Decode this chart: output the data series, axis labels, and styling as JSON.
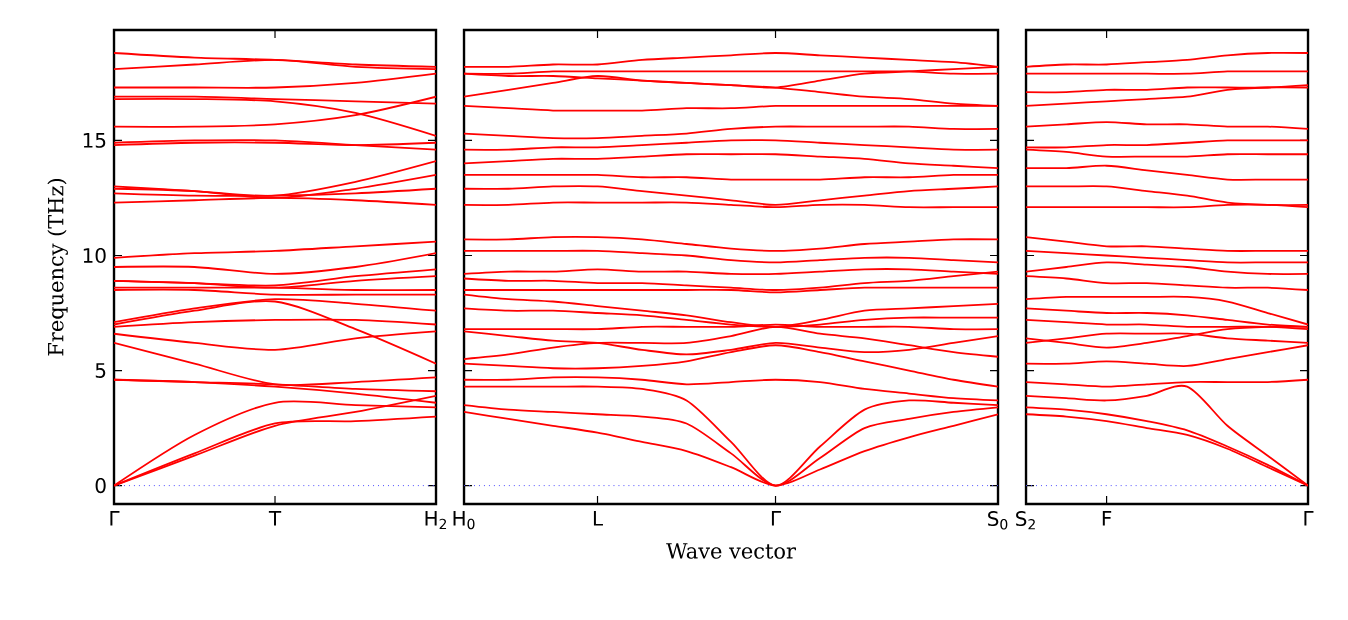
{
  "chart_data": [
    {
      "type": "line",
      "ylabel": "Frequency (THz)",
      "categories": [
        "Γ",
        null,
        "T",
        null,
        "H$_{2}$"
      ],
      "ylim": [
        -0.8,
        19.8
      ],
      "yticks": [
        0,
        5,
        10,
        15
      ],
      "ref_lines": [
        {
          "axis": "y",
          "value": 0,
          "color": "#4d4dff",
          "line_style": "dotted"
        }
      ],
      "series": [
        {
          "color": "#ff0000",
          "values": [
            18.8,
            18.6,
            18.5,
            18.3,
            18.2
          ]
        },
        {
          "color": "#ff0000",
          "values": [
            18.1,
            18.3,
            18.5,
            18.2,
            18.1
          ]
        },
        {
          "color": "#ff0000",
          "values": [
            17.3,
            17.3,
            17.3,
            17.5,
            17.9
          ]
        },
        {
          "color": "#ff0000",
          "values": [
            16.9,
            16.9,
            16.8,
            16.7,
            16.6
          ]
        },
        {
          "color": "#ff0000",
          "values": [
            16.8,
            16.8,
            16.7,
            16.2,
            15.2
          ]
        },
        {
          "color": "#ff0000",
          "values": [
            15.6,
            15.6,
            15.7,
            16.1,
            16.9
          ]
        },
        {
          "color": "#ff0000",
          "values": [
            14.9,
            15.0,
            15.0,
            14.8,
            14.6
          ]
        },
        {
          "color": "#ff0000",
          "values": [
            14.8,
            14.9,
            14.9,
            14.8,
            14.9
          ]
        },
        {
          "color": "#ff0000",
          "values": [
            13.0,
            12.8,
            12.6,
            13.2,
            14.1
          ]
        },
        {
          "color": "#ff0000",
          "values": [
            12.9,
            12.8,
            12.5,
            12.9,
            13.5
          ]
        },
        {
          "color": "#ff0000",
          "values": [
            12.7,
            12.6,
            12.6,
            12.7,
            12.9
          ]
        },
        {
          "color": "#ff0000",
          "values": [
            12.3,
            12.4,
            12.5,
            12.4,
            12.2
          ]
        },
        {
          "color": "#ff0000",
          "values": [
            9.9,
            10.1,
            10.2,
            10.4,
            10.6
          ]
        },
        {
          "color": "#ff0000",
          "values": [
            9.5,
            9.5,
            9.2,
            9.5,
            10.1
          ]
        },
        {
          "color": "#ff0000",
          "values": [
            8.9,
            8.8,
            8.7,
            9.1,
            9.4
          ]
        },
        {
          "color": "#ff0000",
          "values": [
            8.9,
            8.8,
            8.6,
            8.9,
            9.1
          ]
        },
        {
          "color": "#ff0000",
          "values": [
            8.6,
            8.6,
            8.6,
            8.5,
            8.5
          ]
        },
        {
          "color": "#ff0000",
          "values": [
            8.5,
            8.5,
            8.3,
            8.3,
            8.3
          ]
        },
        {
          "color": "#ff0000",
          "values": [
            7.1,
            7.7,
            8.1,
            7.9,
            7.6
          ]
        },
        {
          "color": "#ff0000",
          "values": [
            6.9,
            7.1,
            7.2,
            7.2,
            7.0
          ]
        },
        {
          "color": "#ff0000",
          "values": [
            7.0,
            7.6,
            8.0,
            6.8,
            5.3
          ]
        },
        {
          "color": "#ff0000",
          "values": [
            6.6,
            6.2,
            5.9,
            6.4,
            6.7
          ]
        },
        {
          "color": "#ff0000",
          "values": [
            6.2,
            5.3,
            4.4,
            4.5,
            4.7
          ]
        },
        {
          "color": "#ff0000",
          "values": [
            4.6,
            4.5,
            4.4,
            4.2,
            4.1
          ]
        },
        {
          "color": "#ff0000",
          "values": [
            4.6,
            4.5,
            4.3,
            4.0,
            3.6
          ]
        },
        {
          "color": "#ff0000",
          "values": [
            0,
            2.2,
            3.6,
            3.5,
            3.4
          ]
        },
        {
          "color": "#ff0000",
          "values": [
            0,
            1.3,
            2.6,
            3.2,
            3.9
          ]
        },
        {
          "color": "#ff0000",
          "values": [
            0,
            1.4,
            2.7,
            2.8,
            3.0
          ]
        }
      ]
    },
    {
      "type": "line",
      "xlabel": "Wave vector",
      "tick_labels": "x",
      "categories": [
        "H$_{0}$",
        null,
        null,
        "L",
        null,
        null,
        null,
        "Γ",
        null,
        null,
        null,
        null,
        "S$_{0}$"
      ],
      "ylim": [
        -0.8,
        19.8
      ],
      "yticks": [
        0,
        5,
        10,
        15
      ],
      "ref_lines": [
        {
          "axis": "y",
          "value": 0,
          "color": "#4d4dff",
          "line_style": "dotted"
        }
      ],
      "series": [
        {
          "color": "#ff0000",
          "values": [
            18.2,
            18.2,
            18.3,
            18.3,
            18.5,
            18.6,
            18.7,
            18.8,
            18.7,
            18.6,
            18.5,
            18.4,
            18.2
          ]
        },
        {
          "color": "#ff0000",
          "values": [
            17.9,
            17.9,
            18.0,
            18.0,
            18.0,
            18.0,
            18.0,
            18.0,
            18.0,
            18.0,
            18.0,
            17.9,
            17.9
          ]
        },
        {
          "color": "#ff0000",
          "values": [
            16.9,
            17.2,
            17.5,
            17.8,
            17.6,
            17.5,
            17.4,
            17.3,
            17.1,
            16.9,
            16.8,
            16.6,
            16.5
          ]
        },
        {
          "color": "#ff0000",
          "values": [
            17.9,
            17.8,
            17.8,
            17.7,
            17.6,
            17.5,
            17.4,
            17.3,
            17.6,
            17.9,
            18.0,
            18.1,
            18.2
          ]
        },
        {
          "color": "#ff0000",
          "values": [
            16.5,
            16.4,
            16.3,
            16.3,
            16.3,
            16.4,
            16.4,
            16.5,
            16.5,
            16.5,
            16.5,
            16.5,
            16.5
          ]
        },
        {
          "color": "#ff0000",
          "values": [
            15.3,
            15.2,
            15.1,
            15.1,
            15.2,
            15.3,
            15.5,
            15.6,
            15.6,
            15.6,
            15.6,
            15.5,
            15.5
          ]
        },
        {
          "color": "#ff0000",
          "values": [
            14.6,
            14.6,
            14.7,
            14.7,
            14.8,
            14.9,
            15.0,
            15.0,
            14.9,
            14.8,
            14.7,
            14.6,
            14.6
          ]
        },
        {
          "color": "#ff0000",
          "values": [
            14.0,
            14.1,
            14.2,
            14.2,
            14.3,
            14.4,
            14.4,
            14.4,
            14.3,
            14.2,
            14.0,
            13.9,
            13.8
          ]
        },
        {
          "color": "#ff0000",
          "values": [
            13.5,
            13.5,
            13.5,
            13.5,
            13.4,
            13.4,
            13.3,
            13.3,
            13.3,
            13.4,
            13.4,
            13.5,
            13.5
          ]
        },
        {
          "color": "#ff0000",
          "values": [
            12.9,
            12.9,
            13.0,
            13.0,
            12.8,
            12.6,
            12.4,
            12.2,
            12.4,
            12.6,
            12.8,
            12.9,
            13.0
          ]
        },
        {
          "color": "#ff0000",
          "values": [
            12.2,
            12.2,
            12.3,
            12.3,
            12.3,
            12.3,
            12.2,
            12.1,
            12.2,
            12.2,
            12.1,
            12.1,
            12.1
          ]
        },
        {
          "color": "#ff0000",
          "values": [
            10.7,
            10.7,
            10.8,
            10.8,
            10.7,
            10.5,
            10.3,
            10.2,
            10.3,
            10.5,
            10.6,
            10.7,
            10.7
          ]
        },
        {
          "color": "#ff0000",
          "values": [
            10.2,
            10.2,
            10.2,
            10.2,
            10.1,
            10.0,
            9.8,
            9.7,
            9.8,
            9.9,
            9.9,
            9.8,
            9.7
          ]
        },
        {
          "color": "#ff0000",
          "values": [
            9.2,
            9.3,
            9.3,
            9.4,
            9.3,
            9.3,
            9.2,
            9.2,
            9.3,
            9.4,
            9.4,
            9.3,
            9.2
          ]
        },
        {
          "color": "#ff0000",
          "values": [
            9.0,
            8.9,
            8.9,
            8.8,
            8.8,
            8.7,
            8.6,
            8.5,
            8.6,
            8.8,
            8.9,
            9.1,
            9.3
          ]
        },
        {
          "color": "#ff0000",
          "values": [
            8.5,
            8.5,
            8.5,
            8.5,
            8.5,
            8.5,
            8.5,
            8.4,
            8.5,
            8.6,
            8.6,
            8.6,
            8.6
          ]
        },
        {
          "color": "#ff0000",
          "values": [
            8.3,
            8.1,
            8.0,
            7.8,
            7.6,
            7.4,
            7.1,
            6.9,
            7.2,
            7.6,
            7.7,
            7.8,
            7.9
          ]
        },
        {
          "color": "#ff0000",
          "values": [
            7.7,
            7.6,
            7.6,
            7.5,
            7.4,
            7.2,
            7.0,
            6.9,
            7.0,
            7.2,
            7.3,
            7.3,
            7.3
          ]
        },
        {
          "color": "#ff0000",
          "values": [
            6.8,
            6.8,
            6.8,
            6.8,
            6.9,
            6.9,
            6.9,
            7.0,
            6.9,
            6.9,
            6.9,
            6.8,
            6.8
          ]
        },
        {
          "color": "#ff0000",
          "values": [
            6.7,
            6.5,
            6.3,
            6.2,
            5.9,
            5.7,
            5.9,
            6.2,
            6.0,
            5.8,
            5.9,
            6.2,
            6.5
          ]
        },
        {
          "color": "#ff0000",
          "values": [
            5.5,
            5.7,
            6.0,
            6.2,
            6.2,
            6.2,
            6.5,
            6.9,
            6.6,
            6.4,
            6.1,
            5.8,
            5.6
          ]
        },
        {
          "color": "#ff0000",
          "values": [
            5.3,
            5.2,
            5.1,
            5.1,
            5.2,
            5.4,
            5.8,
            6.1,
            5.8,
            5.4,
            5.0,
            4.6,
            4.3
          ]
        },
        {
          "color": "#ff0000",
          "values": [
            4.6,
            4.6,
            4.7,
            4.7,
            4.6,
            4.4,
            4.5,
            4.6,
            4.5,
            4.2,
            4.0,
            3.8,
            3.7
          ]
        },
        {
          "color": "#ff0000",
          "values": [
            4.3,
            4.3,
            4.3,
            4.3,
            4.2,
            3.7,
            1.9,
            0,
            1.7,
            3.3,
            3.7,
            3.6,
            3.5
          ]
        },
        {
          "color": "#ff0000",
          "values": [
            3.5,
            3.3,
            3.2,
            3.1,
            3.0,
            2.7,
            1.4,
            0,
            1.2,
            2.5,
            2.9,
            3.2,
            3.4
          ]
        },
        {
          "color": "#ff0000",
          "values": [
            3.2,
            2.9,
            2.6,
            2.3,
            1.9,
            1.5,
            0.8,
            0,
            0.7,
            1.5,
            2.1,
            2.6,
            3.1
          ]
        }
      ]
    },
    {
      "type": "line",
      "tick_labels": "x",
      "categories": [
        "S$_{2}$",
        null,
        "F",
        null,
        null,
        null,
        null,
        "Γ"
      ],
      "ylim": [
        -0.8,
        19.8
      ],
      "yticks": [
        0,
        5,
        10,
        15
      ],
      "ref_lines": [
        {
          "axis": "y",
          "value": 0,
          "color": "#4d4dff",
          "line_style": "dotted"
        }
      ],
      "series": [
        {
          "color": "#ff0000",
          "values": [
            18.2,
            18.3,
            18.3,
            18.4,
            18.5,
            18.7,
            18.8,
            18.8
          ]
        },
        {
          "color": "#ff0000",
          "values": [
            17.9,
            17.9,
            17.9,
            17.9,
            17.9,
            18.0,
            18.0,
            18.0
          ]
        },
        {
          "color": "#ff0000",
          "values": [
            17.1,
            17.1,
            17.2,
            17.2,
            17.3,
            17.3,
            17.3,
            17.4
          ]
        },
        {
          "color": "#ff0000",
          "values": [
            16.5,
            16.6,
            16.7,
            16.8,
            16.9,
            17.2,
            17.3,
            17.3
          ]
        },
        {
          "color": "#ff0000",
          "values": [
            15.6,
            15.7,
            15.8,
            15.7,
            15.7,
            15.6,
            15.6,
            15.5
          ]
        },
        {
          "color": "#ff0000",
          "values": [
            14.7,
            14.7,
            14.8,
            14.8,
            14.9,
            15.0,
            15.0,
            15.0
          ]
        },
        {
          "color": "#ff0000",
          "values": [
            14.6,
            14.5,
            14.3,
            14.3,
            14.3,
            14.4,
            14.4,
            14.4
          ]
        },
        {
          "color": "#ff0000",
          "values": [
            13.8,
            13.8,
            13.9,
            13.7,
            13.5,
            13.3,
            13.3,
            13.3
          ]
        },
        {
          "color": "#ff0000",
          "values": [
            13.0,
            13.0,
            13.0,
            12.8,
            12.6,
            12.3,
            12.2,
            12.2
          ]
        },
        {
          "color": "#ff0000",
          "values": [
            12.1,
            12.1,
            12.1,
            12.1,
            12.1,
            12.2,
            12.2,
            12.1
          ]
        },
        {
          "color": "#ff0000",
          "values": [
            10.8,
            10.6,
            10.4,
            10.4,
            10.3,
            10.2,
            10.2,
            10.2
          ]
        },
        {
          "color": "#ff0000",
          "values": [
            10.2,
            10.1,
            10.0,
            9.9,
            9.8,
            9.7,
            9.7,
            9.7
          ]
        },
        {
          "color": "#ff0000",
          "values": [
            9.3,
            9.5,
            9.7,
            9.6,
            9.5,
            9.3,
            9.2,
            9.2
          ]
        },
        {
          "color": "#ff0000",
          "values": [
            9.1,
            9.0,
            8.8,
            8.8,
            8.7,
            8.6,
            8.6,
            8.5
          ]
        },
        {
          "color": "#ff0000",
          "values": [
            8.1,
            8.2,
            8.2,
            8.2,
            8.2,
            8.0,
            7.5,
            7.0
          ]
        },
        {
          "color": "#ff0000",
          "values": [
            7.7,
            7.6,
            7.5,
            7.5,
            7.4,
            7.2,
            7.0,
            6.9
          ]
        },
        {
          "color": "#ff0000",
          "values": [
            7.2,
            7.1,
            7.0,
            7.0,
            6.9,
            6.9,
            6.9,
            6.8
          ]
        },
        {
          "color": "#ff0000",
          "values": [
            6.4,
            6.2,
            6.0,
            6.2,
            6.5,
            6.8,
            6.9,
            6.9
          ]
        },
        {
          "color": "#ff0000",
          "values": [
            6.2,
            6.4,
            6.6,
            6.6,
            6.6,
            6.4,
            6.3,
            6.2
          ]
        },
        {
          "color": "#ff0000",
          "values": [
            5.3,
            5.3,
            5.4,
            5.3,
            5.2,
            5.5,
            5.8,
            6.1
          ]
        },
        {
          "color": "#ff0000",
          "values": [
            4.5,
            4.4,
            4.3,
            4.4,
            4.5,
            4.5,
            4.5,
            4.6
          ]
        },
        {
          "color": "#ff0000",
          "values": [
            3.9,
            3.8,
            3.7,
            3.9,
            4.3,
            2.6,
            1.3,
            0
          ]
        },
        {
          "color": "#ff0000",
          "values": [
            3.4,
            3.3,
            3.1,
            2.8,
            2.4,
            1.7,
            0.9,
            0
          ]
        },
        {
          "color": "#ff0000",
          "values": [
            3.1,
            3.0,
            2.8,
            2.5,
            2.2,
            1.6,
            0.8,
            0
          ]
        }
      ]
    }
  ]
}
